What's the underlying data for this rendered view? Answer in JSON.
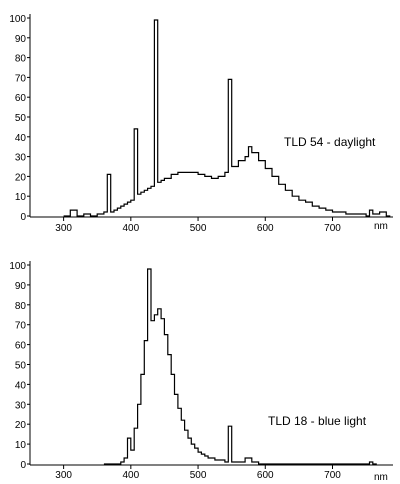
{
  "chart_data": [
    {
      "type": "line",
      "label": "TLD 54 - daylight",
      "x_unit": "nm",
      "xlim": [
        250,
        790
      ],
      "ylim": [
        0,
        100
      ],
      "x_ticks": [
        300,
        400,
        500,
        600,
        700
      ],
      "y_ticks": [
        0,
        10,
        20,
        30,
        40,
        50,
        60,
        70,
        80,
        90,
        100
      ],
      "grid": false,
      "series": [
        {
          "x": [
            300,
            310,
            320,
            330,
            340,
            350,
            360,
            365,
            370,
            375,
            380,
            385,
            390,
            395,
            400,
            405,
            410,
            415,
            420,
            425,
            430,
            435,
            440,
            445,
            450,
            460,
            470,
            480,
            490,
            500,
            510,
            520,
            530,
            540,
            545,
            550,
            560,
            570,
            575,
            580,
            590,
            600,
            610,
            620,
            630,
            640,
            650,
            660,
            670,
            680,
            690,
            700,
            710,
            720,
            730,
            740,
            750,
            755,
            760,
            770,
            780
          ],
          "y": [
            0,
            3,
            0,
            1,
            0,
            1,
            2,
            21,
            2,
            3,
            4,
            5,
            6,
            7,
            8,
            44,
            11,
            12,
            13,
            14,
            15,
            99,
            17,
            18,
            19,
            21,
            22,
            22,
            22,
            21,
            20,
            19,
            20,
            22,
            69,
            25,
            28,
            30,
            35,
            32,
            28,
            24,
            20,
            16,
            13,
            10,
            8,
            7,
            5,
            4,
            3,
            2,
            2,
            1,
            1,
            1,
            0,
            3,
            1,
            2,
            0
          ]
        }
      ]
    },
    {
      "type": "line",
      "label": "TLD 18 - blue light",
      "x_unit": "nm",
      "xlim": [
        250,
        790
      ],
      "ylim": [
        0,
        100
      ],
      "x_ticks": [
        300,
        400,
        500,
        600,
        700
      ],
      "y_ticks": [
        0,
        10,
        20,
        30,
        40,
        50,
        60,
        70,
        80,
        90,
        100
      ],
      "grid": false,
      "series": [
        {
          "x": [
            360,
            370,
            380,
            385,
            390,
            395,
            400,
            405,
            410,
            415,
            420,
            425,
            430,
            435,
            440,
            445,
            450,
            455,
            460,
            465,
            470,
            475,
            480,
            485,
            490,
            495,
            500,
            505,
            510,
            515,
            520,
            525,
            530,
            540,
            545,
            550,
            560,
            570,
            580,
            590,
            600,
            750,
            755,
            760
          ],
          "y": [
            0,
            0,
            0,
            1,
            3,
            13,
            7,
            18,
            30,
            45,
            62,
            98,
            72,
            75,
            78,
            73,
            65,
            55,
            45,
            35,
            28,
            22,
            17,
            13,
            10,
            8,
            6,
            5,
            4,
            3,
            3,
            2,
            2,
            1,
            19,
            1,
            1,
            3,
            1,
            0,
            0,
            0,
            1,
            0
          ]
        }
      ]
    }
  ]
}
